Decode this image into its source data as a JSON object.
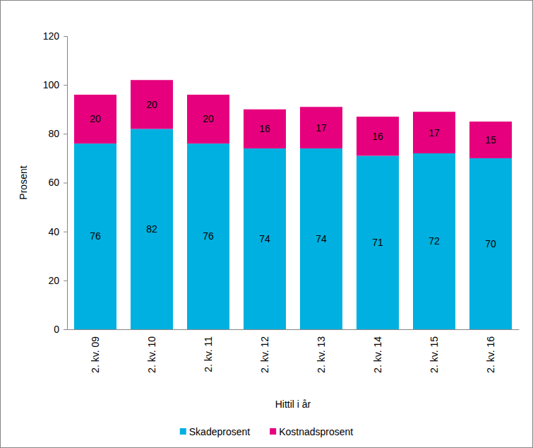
{
  "chart_data": {
    "type": "bar",
    "stacked": true,
    "data_labels": true,
    "grid": false,
    "legend": "bottom",
    "x_label": "Hittil i år",
    "y_label": "Prosent",
    "categories": [
      "2. kv. 09",
      "2. kv. 10",
      "2. kv. 11",
      "2. kv. 12",
      "2. kv. 13",
      "2. kv. 14",
      "2. kv. 15",
      "2. kv. 16"
    ],
    "series": [
      {
        "name": "Skadeprosent",
        "color": "#00B0E0",
        "values": [
          76,
          82,
          76,
          74,
          74,
          71,
          72,
          70
        ]
      },
      {
        "name": "Kostnadsprosent",
        "color": "#E6007E",
        "values": [
          20,
          20,
          20,
          16,
          17,
          16,
          17,
          15
        ]
      }
    ],
    "ylim": [
      0,
      120
    ],
    "yticks": [
      0,
      20,
      40,
      60,
      80,
      100,
      120
    ]
  }
}
